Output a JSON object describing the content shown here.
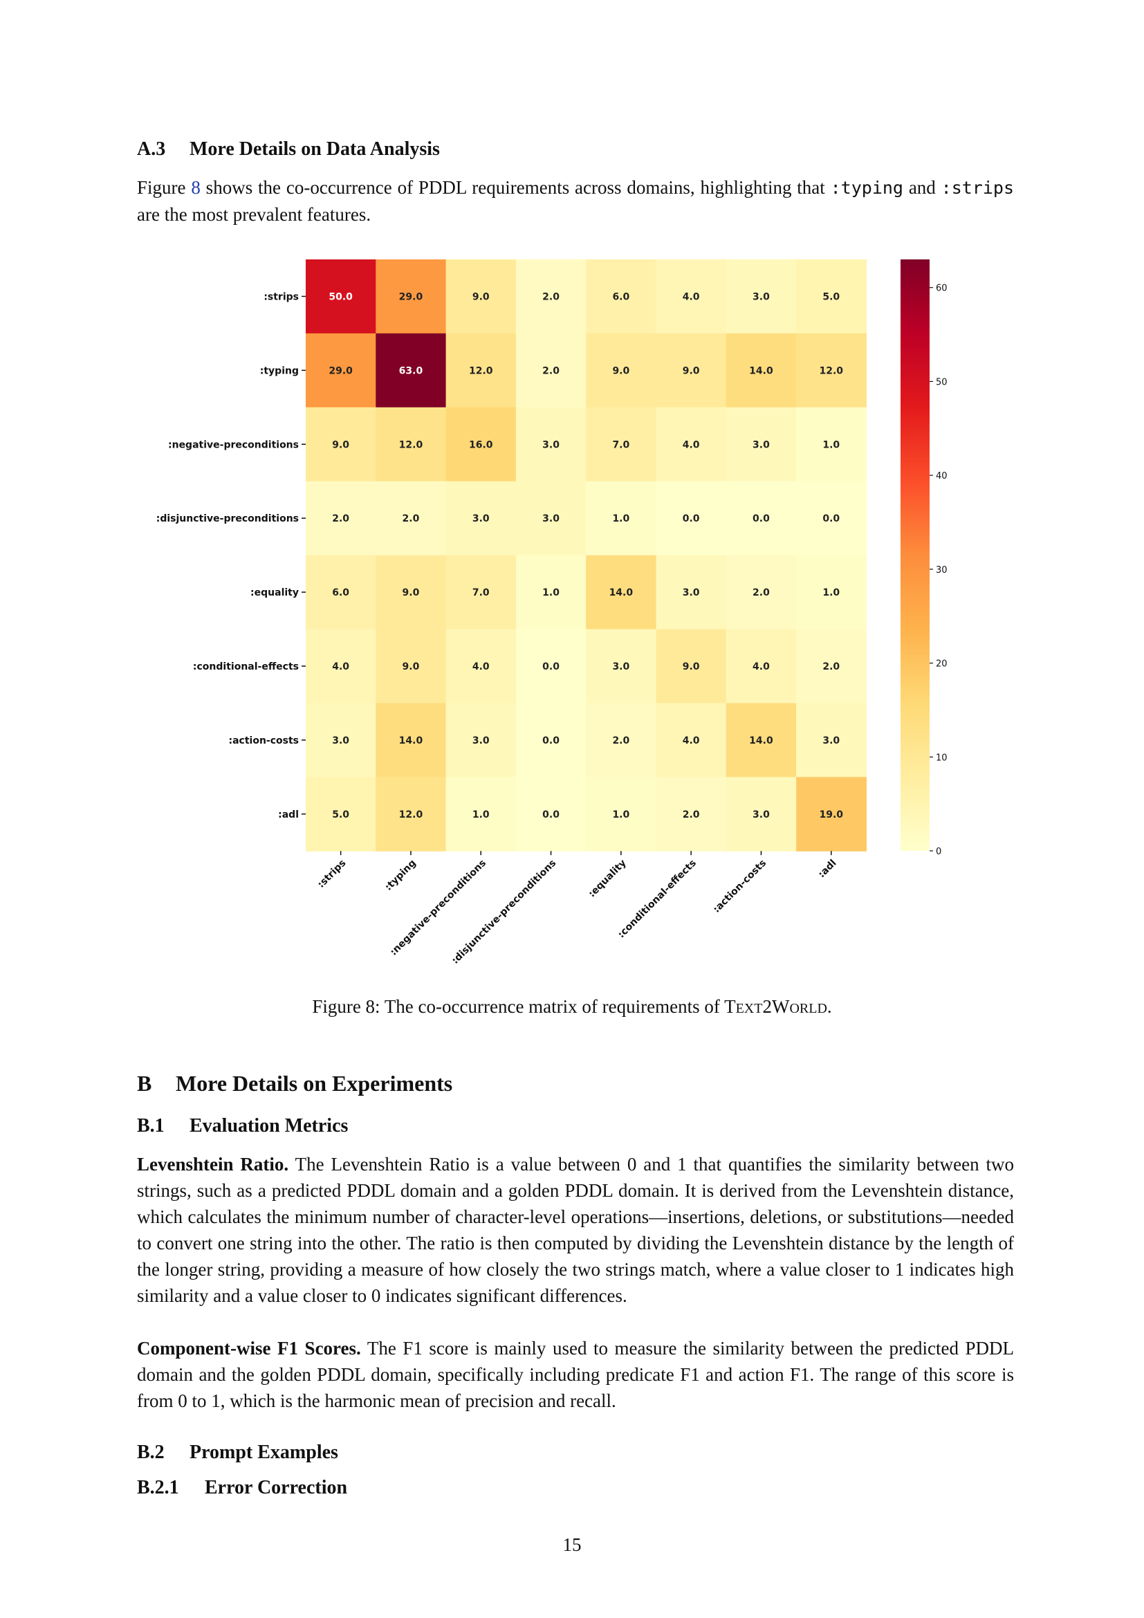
{
  "section_a3": {
    "number": "A.3",
    "title": "More Details on Data Analysis",
    "intro_pre": "Figure ",
    "intro_ref": "8",
    "intro_mid": " shows the co-occurrence of PDDL requirements across domains, highlighting that ",
    "code1": ":typing",
    "intro_and": " and",
    "code2": ":strips",
    "intro_post": " are the most prevalent features."
  },
  "chart_data": {
    "type": "heatmap",
    "title": "",
    "xlabel": "",
    "ylabel": "",
    "rows": [
      ":strips",
      ":typing",
      ":negative-preconditions",
      ":disjunctive-preconditions",
      ":equality",
      ":conditional-effects",
      ":action-costs",
      ":adl"
    ],
    "columns": [
      ":strips",
      ":typing",
      ":negative-preconditions",
      ":disjunctive-preconditions",
      ":equality",
      ":conditional-effects",
      ":action-costs",
      ":adl"
    ],
    "values": [
      [
        50.0,
        29.0,
        9.0,
        2.0,
        6.0,
        4.0,
        3.0,
        5.0
      ],
      [
        29.0,
        63.0,
        12.0,
        2.0,
        9.0,
        9.0,
        14.0,
        12.0
      ],
      [
        9.0,
        12.0,
        16.0,
        3.0,
        7.0,
        4.0,
        3.0,
        1.0
      ],
      [
        2.0,
        2.0,
        3.0,
        3.0,
        1.0,
        0.0,
        0.0,
        0.0
      ],
      [
        6.0,
        9.0,
        7.0,
        1.0,
        14.0,
        3.0,
        2.0,
        1.0
      ],
      [
        4.0,
        9.0,
        4.0,
        0.0,
        3.0,
        9.0,
        4.0,
        2.0
      ],
      [
        3.0,
        14.0,
        3.0,
        0.0,
        2.0,
        4.0,
        14.0,
        3.0
      ],
      [
        5.0,
        12.0,
        1.0,
        0.0,
        1.0,
        2.0,
        3.0,
        19.0
      ]
    ],
    "colormap": "YlOrRd",
    "colorbar": {
      "min": 0,
      "max": 63,
      "ticks": [
        0,
        10,
        20,
        30,
        40,
        50,
        60
      ]
    }
  },
  "figure_caption": {
    "label": "Figure 8: The co-occurrence matrix of requirements of ",
    "name_t": "T",
    "name_ext": "EXT",
    "name_2": "2",
    "name_w": "W",
    "name_orld": "ORLD",
    "end": "."
  },
  "section_b": {
    "number": "B",
    "title": "More Details on Experiments"
  },
  "section_b1": {
    "number": "B.1",
    "title": "Evaluation Metrics"
  },
  "levenshtein": {
    "heading": "Levenshtein Ratio.",
    "text": "The Levenshtein Ratio is a value between 0 and 1 that quantifies the similarity between two strings, such as a predicted PDDL domain and a golden PDDL domain. It is derived from the Levenshtein distance, which calculates the minimum number of character-level operations—insertions, deletions, or substitutions—needed to convert one string into the other. The ratio is then computed by dividing the Levenshtein distance by the length of the longer string, providing a measure of how closely the two strings match, where a value closer to 1 indicates high similarity and a value closer to 0 indicates significant differences."
  },
  "f1": {
    "heading": "Component-wise F1 Scores.",
    "text": "The F1 score is mainly used to measure the similarity between the predicted PDDL domain and the golden PDDL domain, specifically including predicate F1 and action F1. The range of this score is from 0 to 1, which is the harmonic mean of precision and recall."
  },
  "section_b2": {
    "number": "B.2",
    "title": "Prompt Examples"
  },
  "section_b21": {
    "number": "B.2.1",
    "title": "Error Correction"
  },
  "page_number": "15"
}
